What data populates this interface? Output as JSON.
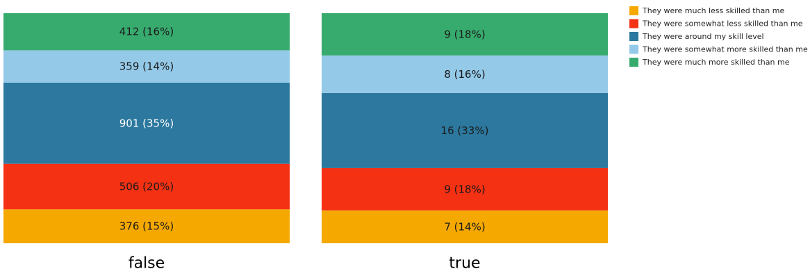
{
  "chart_data": {
    "type": "bar",
    "stacked": true,
    "normalized": true,
    "categories": [
      "false",
      "true"
    ],
    "series": [
      {
        "name": "They were much less skilled than me",
        "color": "#f5a800",
        "values": [
          376,
          7
        ],
        "labels": [
          "376 (15%)",
          "7 (14%)"
        ]
      },
      {
        "name": "They were somewhat less skilled than me",
        "color": "#f53114",
        "values": [
          506,
          9
        ],
        "labels": [
          "506 (20%)",
          "9 (18%)"
        ]
      },
      {
        "name": "They were around my skill level",
        "color": "#2c789e",
        "values": [
          901,
          16
        ],
        "labels": [
          "901 (35%)",
          "16 (33%)"
        ]
      },
      {
        "name": "They were somewhat more skilled than me",
        "color": "#94c9e8",
        "values": [
          359,
          8
        ],
        "labels": [
          "359 (14%)",
          "8 (16%)"
        ]
      },
      {
        "name": "They were much more skilled than me",
        "color": "#37ab6e",
        "values": [
          412,
          9
        ],
        "labels": [
          "412 (16%)",
          "9 (18%)"
        ]
      }
    ],
    "label_colors": [
      [
        "#1a1a1a",
        "#1a1a1a"
      ],
      [
        "#1a1a1a",
        "#1a1a1a"
      ],
      [
        "#ffffff",
        "#1a1a1a"
      ],
      [
        "#1a1a1a",
        "#1a1a1a"
      ],
      [
        "#1a1a1a",
        "#1a1a1a"
      ]
    ],
    "legend_position": "top-right",
    "grid": false
  }
}
